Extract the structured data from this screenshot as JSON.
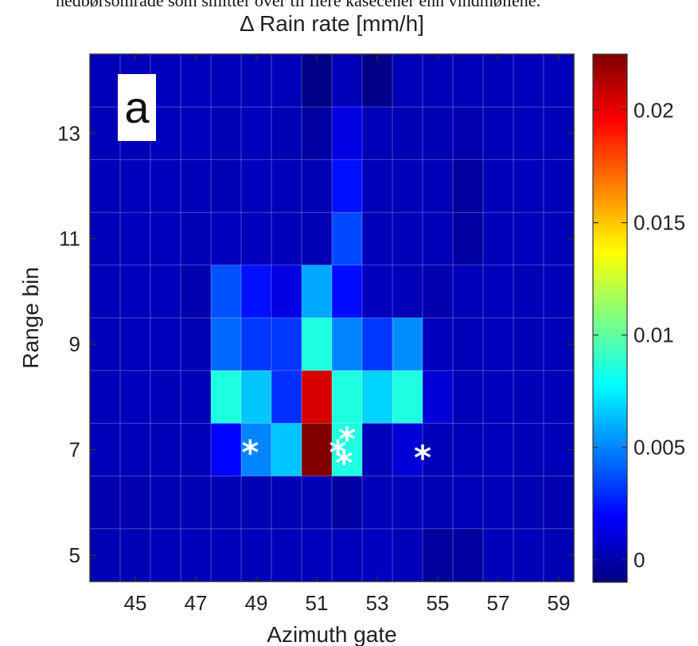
{
  "caption_top": "nedbørsområde som smitter over til flere kasecener enn vindmøllene.",
  "chart_data": {
    "type": "heatmap",
    "title": "Δ Rain rate [mm/h]",
    "xlabel": "Azimuth gate",
    "ylabel": "Range bin",
    "panel_label": "a",
    "x": [
      44,
      45,
      46,
      47,
      48,
      49,
      50,
      51,
      52,
      53,
      54,
      55,
      56,
      57,
      58,
      59
    ],
    "y": [
      14,
      13,
      12,
      11,
      10,
      9,
      8,
      7,
      6,
      5
    ],
    "x_ticks": [
      45,
      47,
      49,
      51,
      53,
      55,
      57,
      59
    ],
    "y_ticks": [
      13,
      11,
      9,
      7,
      5
    ],
    "clim": [
      -0.001,
      0.0225
    ],
    "colorbar_ticks": [
      0,
      0.005,
      0.01,
      0.015,
      0.02
    ],
    "colorbar_tick_labels": [
      "0",
      "0.005",
      "0.01",
      "0.015",
      "0.02"
    ],
    "colormap": "jet",
    "values": [
      [
        0.0003,
        0.0003,
        0.0004,
        0.0004,
        0.0003,
        0.0003,
        0.0003,
        -0.0008,
        0.0003,
        -0.0008,
        0.0003,
        0.0003,
        0.0003,
        0.0003,
        0.0004,
        0.0004
      ],
      [
        0.0003,
        0.0003,
        0.0004,
        0.0004,
        0.0002,
        0.0004,
        0.0002,
        -0.0002,
        0.0013,
        0.0003,
        0.0002,
        0.0002,
        0.0001,
        0.0003,
        0.0004,
        0.0003
      ],
      [
        0.0003,
        0.0004,
        0.0004,
        0.0003,
        0.0002,
        0.0004,
        0.0003,
        0.0002,
        0.0023,
        0.0003,
        0.0003,
        0.0003,
        -0.0003,
        0.0003,
        0.0004,
        0.0003
      ],
      [
        0.0003,
        0.0004,
        0.0004,
        0.0002,
        0.0004,
        0.0004,
        0.0003,
        0.0002,
        0.0036,
        0.0003,
        0.0003,
        0.0003,
        -0.0002,
        0.0003,
        0.0004,
        0.0003
      ],
      [
        0.0003,
        0.0004,
        0.0004,
        0.0001,
        0.0038,
        0.0023,
        0.0013,
        0.0058,
        0.0022,
        0.0004,
        0.0003,
        0.0001,
        0.0003,
        0.0004,
        0.0003,
        0.0003
      ],
      [
        0.0003,
        0.0004,
        0.0004,
        0.0002,
        0.0043,
        0.0032,
        0.0032,
        0.0085,
        0.005,
        0.0032,
        0.0052,
        0.0004,
        0.0003,
        0.0004,
        0.0003,
        0.0003
      ],
      [
        0.0003,
        0.0004,
        0.0003,
        0.0003,
        0.0085,
        0.0065,
        0.003,
        0.0205,
        0.0085,
        0.0068,
        0.0085,
        0.001,
        0.0003,
        0.0004,
        0.0003,
        0.0003
      ],
      [
        0.0003,
        0.0003,
        0.0003,
        0.0003,
        0.002,
        0.005,
        0.0065,
        0.0225,
        0.0085,
        0.0003,
        0.001,
        0.0003,
        0.0003,
        0.0004,
        0.0003,
        0.0003
      ],
      [
        0.0001,
        0.0001,
        0.0002,
        0.0002,
        0.0002,
        0.0002,
        0.0002,
        0.0002,
        -0.0002,
        0.0003,
        0.0003,
        0.0002,
        0.0003,
        0.0003,
        0.0002,
        0.0001
      ],
      [
        0.0002,
        0.0002,
        0.0003,
        0.0003,
        0.0003,
        0.0003,
        0.0003,
        0.0004,
        0.0004,
        0.0005,
        0.0003,
        -0.0003,
        -0.0003,
        0.0003,
        0.0003,
        0.0002
      ]
    ],
    "markers": [
      {
        "x": 48.8,
        "y": 7.0
      },
      {
        "x": 51.7,
        "y": 7.0
      },
      {
        "x": 52.0,
        "y": 7.25
      },
      {
        "x": 51.9,
        "y": 6.8
      },
      {
        "x": 54.5,
        "y": 6.9
      }
    ],
    "marker_symbol": "*",
    "grid": true
  }
}
